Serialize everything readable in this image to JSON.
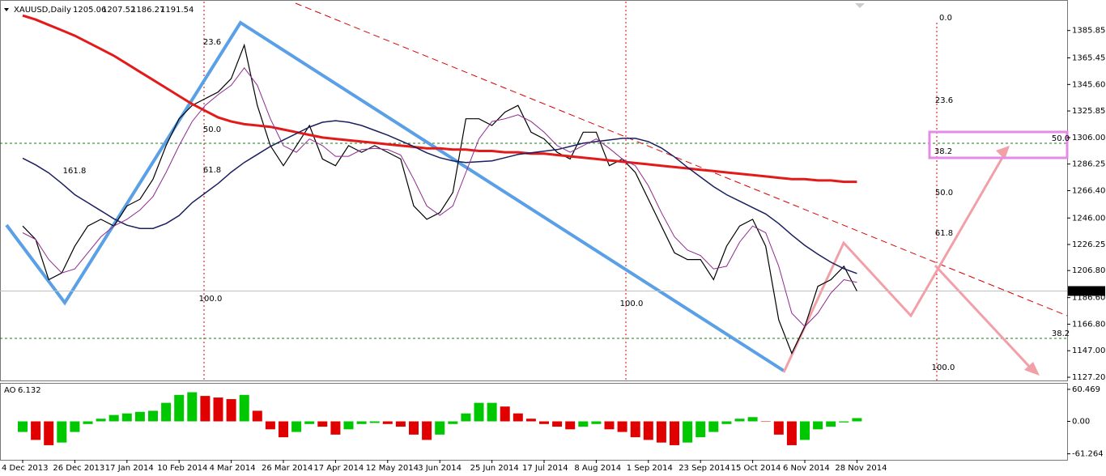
{
  "chart_data": [
    {
      "type": "line",
      "title": "XAUUSD,Daily",
      "open": 1205.06,
      "high": 1207.52,
      "low": 1186.27,
      "categories": [
        "4 Dec 2013",
        null,
        null,
        null,
        "26 Dec 2013",
        null,
        null,
        null,
        "17 Jan 2014",
        null,
        null,
        null,
        "10 Feb 2014",
        null,
        null,
        null,
        "4 Mar 2014",
        null,
        null,
        null,
        "26 Mar 2014",
        null,
        null,
        null,
        "17 Apr 2014",
        null,
        null,
        null,
        "12 May 2014",
        null,
        null,
        null,
        "3 Jun 2014",
        null,
        null,
        null,
        "25 Jun 2014",
        null,
        null,
        null,
        "17 Jul 2014",
        null,
        null,
        null,
        "8 Aug 2014",
        null,
        null,
        null,
        "1 Sep 2014",
        null,
        null,
        null,
        "23 Sep 2014",
        null,
        null,
        null,
        "15 Oct 2014",
        null,
        null,
        null,
        "6 Nov 2014",
        null,
        null,
        null,
        "28 Nov 2014"
      ],
      "series": [
        {
          "color": "#000000",
          "width": 1.2,
          "values": [
            1240,
            1230,
            1200,
            1205,
            1225,
            1240,
            1245,
            1240,
            1255,
            1260,
            1275,
            1300,
            1320,
            1330,
            1335,
            1340,
            1350,
            1375,
            1330,
            1300,
            1285,
            1300,
            1315,
            1290,
            1285,
            1300,
            1295,
            1300,
            1295,
            1290,
            1255,
            1245,
            1250,
            1265,
            1320,
            1320,
            1315,
            1325,
            1330,
            1310,
            1305,
            1295,
            1290,
            1310,
            1310,
            1285,
            1290,
            1280,
            1260,
            1240,
            1220,
            1215,
            1215,
            1200,
            1225,
            1240,
            1245,
            1225,
            1170,
            1145,
            1165,
            1195,
            1200,
            1210,
            1191.54
          ]
        },
        {
          "color": "#e31a1a",
          "width": 3,
          "values": [
            1397,
            1394,
            1390,
            1386,
            1382,
            1377,
            1372,
            1367,
            1361,
            1355,
            1349,
            1343,
            1337,
            1331,
            1326,
            1321,
            1318,
            1316,
            1315,
            1314,
            1312,
            1310,
            1308,
            1306,
            1305,
            1304,
            1303,
            1302,
            1301,
            1300,
            1299,
            1298,
            1298,
            1297,
            1297,
            1296,
            1296,
            1295,
            1295,
            1294,
            1294,
            1293,
            1292,
            1291,
            1290,
            1289,
            1288,
            1287,
            1286,
            1285,
            1284,
            1283,
            1282,
            1281,
            1280,
            1279,
            1278,
            1277,
            1276,
            1275,
            1275,
            1274,
            1274,
            1273,
            1273
          ]
        },
        {
          "color": "#1a1f5e",
          "width": 1.5,
          "values": [
            1290.6,
            1285.6,
            1279.6,
            1271.8,
            1263.4,
            1257.4,
            1251.4,
            1245.4,
            1240.6,
            1238.2,
            1238.2,
            1241.8,
            1247.8,
            1257.4,
            1264.6,
            1271.8,
            1280.2,
            1287.4,
            1293.4,
            1299.4,
            1304.2,
            1309,
            1313.8,
            1317.4,
            1318.6,
            1317.4,
            1315,
            1311.4,
            1307.8,
            1303.6,
            1299.4,
            1294.6,
            1291,
            1288.6,
            1287.4,
            1288,
            1288.6,
            1291,
            1293.4,
            1294.6,
            1295.8,
            1297,
            1299.4,
            1301.8,
            1303,
            1304.2,
            1305.4,
            1305.4,
            1303,
            1298.2,
            1291.6,
            1283.8,
            1276.6,
            1269.4,
            1263.4,
            1258.6,
            1253.8,
            1249,
            1241.8,
            1233.4,
            1225.6,
            1219,
            1213,
            1208.2,
            1204.6
          ]
        },
        {
          "color": "#8e2a8e",
          "width": 1,
          "values": [
            1235,
            1230,
            1215,
            1205,
            1208,
            1220,
            1232,
            1240,
            1245,
            1252,
            1262,
            1280,
            1300,
            1318,
            1330,
            1338,
            1345,
            1358,
            1345,
            1320,
            1300,
            1295,
            1305,
            1300,
            1292,
            1292,
            1297,
            1298,
            1297,
            1293,
            1275,
            1255,
            1248,
            1255,
            1280,
            1305,
            1318,
            1320,
            1323,
            1318,
            1310,
            1300,
            1295,
            1300,
            1305,
            1298,
            1290,
            1285,
            1270,
            1250,
            1232,
            1222,
            1218,
            1208,
            1210,
            1228,
            1240,
            1235,
            1210,
            1175,
            1165,
            1175,
            1190,
            1200,
            1198
          ]
        }
      ],
      "ylim": [
        1124.8,
        1407.4
      ],
      "yticks": [
        1385.85,
        1365.45,
        {
          "value": 1345.6,
          "label": "1345.60"
        },
        1325.85,
        {
          "value": 1306,
          "label": "1306.00"
        },
        1286.25,
        {
          "value": 1266.4,
          "label": "1266.40"
        },
        {
          "value": 1246,
          "label": "1246.00"
        },
        1226.25,
        {
          "value": 1206.8,
          "label": "1206.80"
        },
        {
          "value": 1186.6,
          "label": "1186.60"
        },
        {
          "value": 1166.8,
          "label": "1166.80"
        },
        {
          "value": 1147,
          "label": "1147.00"
        },
        {
          "value": 1127.2,
          "label": "1127.20"
        }
      ],
      "annotations": [
        {
          "text": "23.6",
          "color": "#3a6fc4"
        },
        {
          "text": "50.0",
          "color": "#3a6fc4"
        },
        {
          "text": "61.8",
          "color": "#3a6fc4"
        },
        {
          "text": "100.0",
          "color": "#3a6fc4"
        },
        {
          "text": "161.8",
          "color": "#7b1f8a"
        },
        {
          "text": "100.0",
          "color": "#7b1f8a"
        },
        {
          "text": "0.0",
          "color": "#3a6fc4"
        },
        {
          "text": "23.6",
          "color": "#3a6fc4"
        },
        {
          "text": "38.2",
          "color": "#3a6fc4"
        },
        {
          "text": "50.0",
          "color": "#3a6fc4"
        },
        {
          "text": "61.8",
          "color": "#3a6fc4"
        },
        {
          "text": "100.0",
          "color": "#3a6fc4"
        },
        {
          "text": "50.0",
          "color": "#1a7a1a"
        },
        {
          "text": "38.2",
          "color": "#1a7a1a"
        }
      ]
    },
    {
      "type": "bar",
      "title": "AO",
      "current": 6.132,
      "up_color": "#00c800",
      "down_color": "#e00000",
      "values": [
        -20,
        -35,
        -45,
        -40,
        -20,
        -5,
        5,
        12,
        15,
        18,
        20,
        35,
        50,
        55,
        48,
        45,
        42,
        50,
        20,
        -15,
        -30,
        -20,
        -5,
        -10,
        -25,
        -15,
        -5,
        -3,
        -5,
        -10,
        -25,
        -35,
        -25,
        -5,
        15,
        35,
        35,
        28,
        15,
        5,
        -5,
        -10,
        -15,
        -10,
        -5,
        -15,
        -20,
        -30,
        -35,
        -40,
        -45,
        -40,
        -30,
        -20,
        -5,
        5,
        8,
        0,
        -25,
        -45,
        -35,
        -15,
        -10,
        -2,
        6.132
      ],
      "ylim": [
        -72.6,
        71.1
      ],
      "yticks": [
        60.469,
        {
          "value": 0,
          "label": "0.00"
        },
        -61.264
      ]
    }
  ]
}
